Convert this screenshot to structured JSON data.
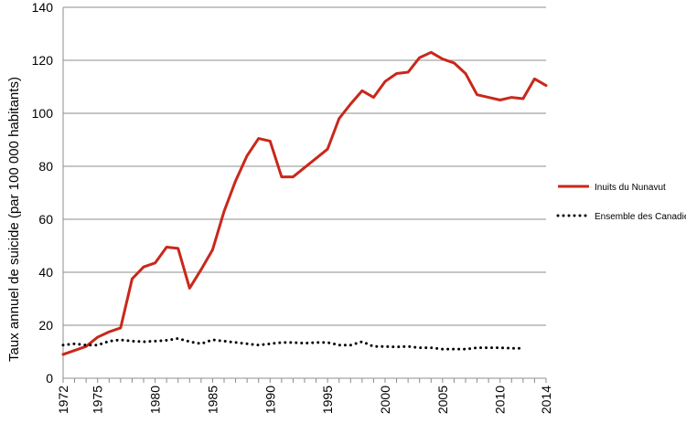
{
  "chart_data": {
    "type": "line",
    "title": "",
    "xlabel": "",
    "ylabel": "Taux annuel de suicide (par 100 000 habitants)",
    "xlim": [
      1972,
      2014
    ],
    "ylim": [
      0,
      140
    ],
    "x_ticks": [
      "1972",
      "1975",
      "1980",
      "1985",
      "1990",
      "1995",
      "2000",
      "2005",
      "2010",
      "2014"
    ],
    "y_ticks": [
      "0",
      "20",
      "40",
      "60",
      "80",
      "100",
      "120",
      "140"
    ],
    "grid": "horizontal",
    "legend_position": "right",
    "series": [
      {
        "name": "Inuits du Nunavut",
        "color": "#c8281b",
        "style": "solid",
        "x": [
          1972,
          1973,
          1974,
          1975,
          1976,
          1977,
          1978,
          1979,
          1980,
          1981,
          1982,
          1983,
          1984,
          1985,
          1986,
          1987,
          1988,
          1989,
          1990,
          1991,
          1992,
          1993,
          1994,
          1995,
          1996,
          1997,
          1998,
          1999,
          2000,
          2001,
          2002,
          2003,
          2004,
          2005,
          2006,
          2007,
          2008,
          2009,
          2010,
          2011,
          2012,
          2013,
          2014
        ],
        "y": [
          9,
          10.5,
          12,
          15.5,
          17.5,
          19,
          37.5,
          42,
          43.5,
          49.5,
          49,
          34,
          41,
          48.5,
          63,
          74.5,
          84,
          90.5,
          89.5,
          76,
          76,
          79.5,
          83,
          86.5,
          98,
          103.5,
          108.5,
          106,
          112,
          115,
          115.5,
          121,
          123,
          120.5,
          119,
          115,
          107,
          106,
          105,
          106,
          105.5,
          113,
          110.5
        ]
      },
      {
        "name": "Ensemble des Canadiens",
        "color": "#000000",
        "style": "dotted",
        "x": [
          1972,
          1973,
          1974,
          1975,
          1976,
          1977,
          1978,
          1979,
          1980,
          1981,
          1982,
          1983,
          1984,
          1985,
          1986,
          1987,
          1988,
          1989,
          1990,
          1991,
          1992,
          1993,
          1994,
          1995,
          1996,
          1997,
          1998,
          1999,
          2000,
          2001,
          2002,
          2003,
          2004,
          2005,
          2006,
          2007,
          2008,
          2009,
          2010,
          2011,
          2012
        ],
        "y": [
          12.5,
          13,
          12.5,
          12.5,
          14,
          14.5,
          14,
          13.8,
          14,
          14.3,
          15,
          13.8,
          13,
          14.5,
          14,
          13.5,
          13,
          12.5,
          13,
          13.5,
          13.5,
          13.2,
          13.5,
          13.5,
          12.5,
          12.5,
          13.8,
          12,
          12,
          11.8,
          12,
          11.5,
          11.5,
          11,
          11,
          11,
          11.5,
          11.5,
          11.5,
          11.3,
          11.3
        ]
      }
    ]
  }
}
